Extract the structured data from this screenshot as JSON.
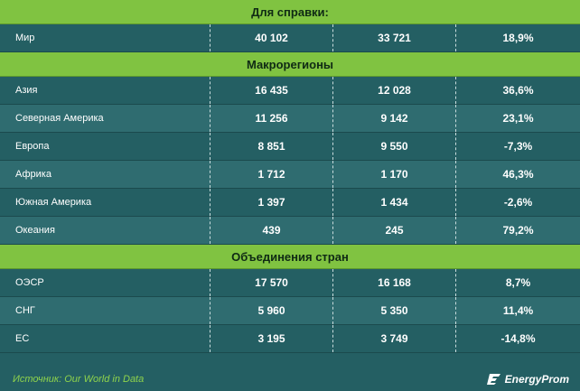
{
  "sections": [
    {
      "title": "Для справки:",
      "rows": [
        {
          "name": "Мир",
          "v1": "40 102",
          "v2": "33 721",
          "v3": "18,9%"
        }
      ]
    },
    {
      "title": "Макрорегионы",
      "rows": [
        {
          "name": "Азия",
          "v1": "16 435",
          "v2": "12 028",
          "v3": "36,6%"
        },
        {
          "name": "Северная Америка",
          "v1": "11 256",
          "v2": "9 142",
          "v3": "23,1%"
        },
        {
          "name": "Европа",
          "v1": "8 851",
          "v2": "9 550",
          "v3": "-7,3%"
        },
        {
          "name": "Африка",
          "v1": "1 712",
          "v2": "1 170",
          "v3": "46,3%"
        },
        {
          "name": "Южная Америка",
          "v1": "1 397",
          "v2": "1 434",
          "v3": "-2,6%"
        },
        {
          "name": "Океания",
          "v1": "439",
          "v2": "245",
          "v3": "79,2%"
        }
      ]
    },
    {
      "title": "Объединения стран",
      "rows": [
        {
          "name": "ОЭСР",
          "v1": "17 570",
          "v2": "16 168",
          "v3": "8,7%"
        },
        {
          "name": "СНГ",
          "v1": "5 960",
          "v2": "5 350",
          "v3": "11,4%"
        },
        {
          "name": "ЕС",
          "v1": "3 195",
          "v2": "3 749",
          "v3": "-14,8%"
        }
      ]
    }
  ],
  "footer": {
    "source": "Источник: Our World in Data",
    "brand": "EnergyProm",
    "brand_icon": "energyprom-logo-icon"
  },
  "colors": {
    "background": "#245f63",
    "header_green": "#80c341",
    "source_text": "#8fd34c"
  }
}
